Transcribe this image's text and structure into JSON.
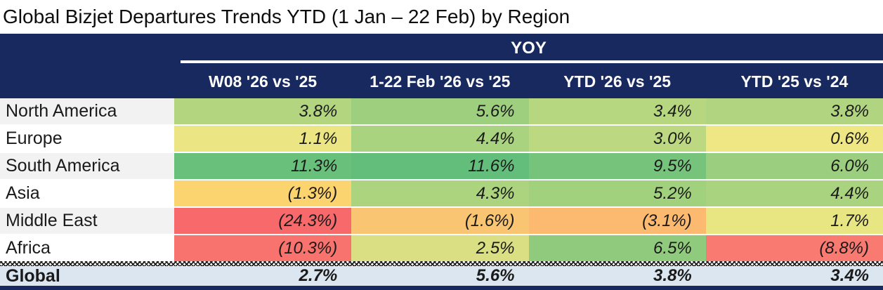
{
  "title": "Global Bizjet Departures Trends YTD (1 Jan – 22 Feb) by Region",
  "table": {
    "group_header": "YOY",
    "columns": [
      "W08 '26 vs '25",
      "1-22 Feb '26 vs '25",
      "YTD '26 vs '25",
      "YTD '25 vs '24"
    ],
    "rows": [
      {
        "region": "North America",
        "values": [
          "3.8%",
          "5.6%",
          "3.4%",
          "3.8%"
        ],
        "cell_colors": [
          "#B3D57F",
          "#9DCF7E",
          "#B6D680",
          "#B0D47F"
        ]
      },
      {
        "region": "Europe",
        "values": [
          "1.1%",
          "4.4%",
          "3.0%",
          "0.6%"
        ],
        "cell_colors": [
          "#EBE683",
          "#AAD37F",
          "#BCD881",
          "#EFE784"
        ]
      },
      {
        "region": "South America",
        "values": [
          "11.3%",
          "11.6%",
          "9.5%",
          "6.0%"
        ],
        "cell_colors": [
          "#68C07B",
          "#63BE7B",
          "#76C47C",
          "#9BCE7E"
        ]
      },
      {
        "region": "Asia",
        "values": [
          "(1.3%)",
          "4.3%",
          "5.2%",
          "4.4%"
        ],
        "cell_colors": [
          "#FBD36F",
          "#ACD47F",
          "#A2D17E",
          "#AAD37F"
        ]
      },
      {
        "region": "Middle East",
        "values": [
          "(24.3%)",
          "(1.6%)",
          "(3.1%)",
          "1.7%"
        ],
        "cell_colors": [
          "#F8696B",
          "#FAC572",
          "#FBBA6F",
          "#E8E583"
        ]
      },
      {
        "region": "Africa",
        "values": [
          "(10.3%)",
          "2.5%",
          "6.5%",
          "(8.8%)"
        ],
        "cell_colors": [
          "#F8736D",
          "#D9DF82",
          "#90CB7D",
          "#F87A71"
        ]
      }
    ],
    "total_row": {
      "region": "Global",
      "values": [
        "2.7%",
        "5.6%",
        "3.8%",
        "3.4%"
      ]
    }
  },
  "colors": {
    "header_bg": "#17295E",
    "header_text": "#FFFFFF",
    "band_row_bg": "#F2F2F2",
    "plain_row_bg": "#FFFFFF",
    "total_row_bg": "#DCE6F1",
    "bottom_bar": "#17295E",
    "negative_min": "#F8696B",
    "midpoint": "#FFEB84",
    "positive_max": "#63BE7B"
  },
  "chart_data": {
    "type": "heatmap",
    "title": "Global Bizjet Departures Trends YTD (1 Jan – 22 Feb) by Region",
    "group_header": "YOY",
    "columns": [
      "W08 '26 vs '25",
      "1-22 Feb '26 vs '25",
      "YTD '26 vs '25",
      "YTD '25 vs '24"
    ],
    "rows": [
      "North America",
      "Europe",
      "South America",
      "Asia",
      "Middle East",
      "Africa",
      "Global"
    ],
    "values_pct": [
      [
        3.8,
        5.6,
        3.4,
        3.8
      ],
      [
        1.1,
        4.4,
        3.0,
        0.6
      ],
      [
        11.3,
        11.6,
        9.5,
        6.0
      ],
      [
        -1.3,
        4.3,
        5.2,
        4.4
      ],
      [
        -24.3,
        -1.6,
        -3.1,
        1.7
      ],
      [
        -10.3,
        2.5,
        6.5,
        -8.8
      ],
      [
        2.7,
        5.6,
        3.8,
        3.4
      ]
    ],
    "color_scale": "red-yellow-green",
    "notes": "negative values shown in parentheses"
  }
}
